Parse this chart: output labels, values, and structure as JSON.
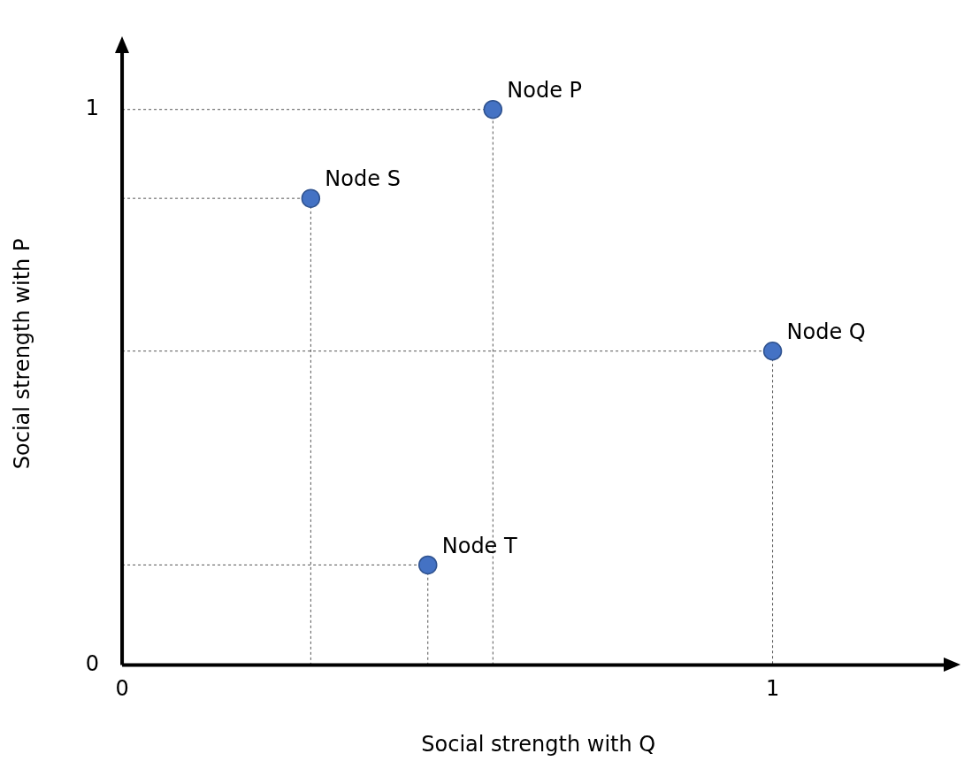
{
  "chart_data": {
    "type": "scatter",
    "xlabel": "Social strength with Q",
    "ylabel": "Social strength with P",
    "series": [
      {
        "color": "#4472c4",
        "x": [
          0.57,
          0.29,
          1.0,
          0.47
        ],
        "values": [
          1.0,
          0.84,
          0.565,
          0.18
        ]
      },
      {
        "type": "line",
        "color": "#555555",
        "marker": "none",
        "line_style": "dotted",
        "x": [
          0,
          0.57,
          0.57
        ],
        "values": [
          1.0,
          1.0,
          0
        ]
      },
      {
        "type": "line",
        "color": "#555555",
        "marker": "none",
        "line_style": "dotted",
        "x": [
          0,
          0.29,
          0.29
        ],
        "values": [
          0.84,
          0.84,
          0
        ]
      },
      {
        "type": "line",
        "color": "#555555",
        "marker": "none",
        "line_style": "dotted",
        "x": [
          0,
          1.0,
          1.0
        ],
        "values": [
          0.565,
          0.565,
          0
        ]
      },
      {
        "type": "line",
        "color": "#555555",
        "marker": "none",
        "line_style": "dotted",
        "x": [
          0,
          0.47,
          0.47
        ],
        "values": [
          0.18,
          0.18,
          0
        ]
      }
    ],
    "annotations": [
      {
        "text": "Node P",
        "x": 0.57,
        "y": 1.0
      },
      {
        "text": "Node S",
        "x": 0.29,
        "y": 0.84
      },
      {
        "text": "Node Q",
        "x": 1.0,
        "y": 0.565
      },
      {
        "text": "Node T",
        "x": 0.47,
        "y": 0.18
      }
    ],
    "xlim": [
      0,
      1.28
    ],
    "ylim": [
      0,
      1.12
    ],
    "xticks": [
      0,
      1
    ],
    "yticks": [
      0,
      1
    ],
    "marker": "circle",
    "grid": false,
    "legend": false
  }
}
